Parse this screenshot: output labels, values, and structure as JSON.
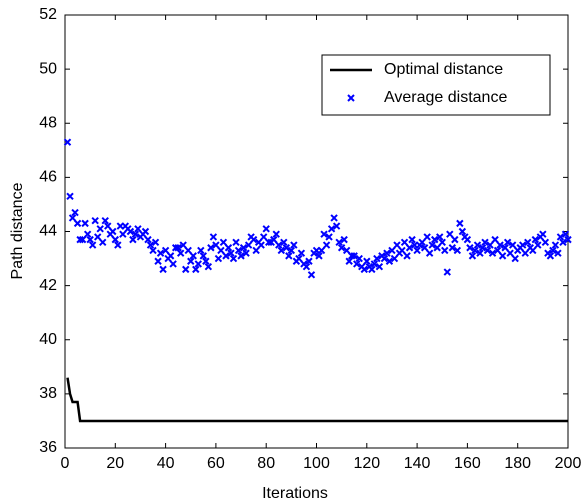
{
  "chart_data": {
    "type": "line",
    "xlabel": "Iterations",
    "ylabel": "Path distance",
    "xlim": [
      0,
      200
    ],
    "xticks": [
      0,
      20,
      40,
      60,
      80,
      100,
      120,
      140,
      160,
      180,
      200
    ],
    "ylim": [
      36,
      52
    ],
    "yticks": [
      36,
      38,
      40,
      42,
      44,
      46,
      48,
      50,
      52
    ],
    "grid": false,
    "legend": "upper right",
    "series": [
      {
        "name": "Optimal distance",
        "color": "#000000",
        "style": "line",
        "x": [
          1,
          2,
          3,
          5,
          6,
          200
        ],
        "values": [
          38.6,
          38.0,
          37.7,
          37.7,
          37.0,
          37.0
        ]
      },
      {
        "name": "Average distance",
        "color": "#0000ff",
        "style": "marker",
        "x": [
          1,
          2,
          3,
          4,
          5,
          6,
          7,
          8,
          9,
          10,
          11,
          12,
          13,
          14,
          15,
          16,
          17,
          18,
          19,
          20,
          21,
          22,
          23,
          24,
          25,
          26,
          27,
          28,
          29,
          30,
          31,
          32,
          33,
          34,
          35,
          36,
          37,
          38,
          39,
          40,
          41,
          42,
          43,
          44,
          45,
          46,
          47,
          48,
          49,
          50,
          51,
          52,
          53,
          54,
          55,
          56,
          57,
          58,
          59,
          60,
          61,
          62,
          63,
          64,
          65,
          66,
          67,
          68,
          69,
          70,
          71,
          72,
          73,
          74,
          75,
          76,
          77,
          78,
          79,
          80,
          81,
          82,
          83,
          84,
          85,
          86,
          87,
          88,
          89,
          90,
          91,
          92,
          93,
          94,
          95,
          96,
          97,
          98,
          99,
          100,
          101,
          102,
          103,
          104,
          105,
          106,
          107,
          108,
          109,
          110,
          111,
          112,
          113,
          114,
          115,
          116,
          117,
          118,
          119,
          120,
          121,
          122,
          123,
          124,
          125,
          126,
          127,
          128,
          129,
          130,
          131,
          132,
          133,
          134,
          135,
          136,
          137,
          138,
          139,
          140,
          141,
          142,
          143,
          144,
          145,
          146,
          147,
          148,
          149,
          150,
          151,
          152,
          153,
          154,
          155,
          156,
          157,
          158,
          159,
          160,
          161,
          162,
          163,
          164,
          165,
          166,
          167,
          168,
          169,
          170,
          171,
          172,
          173,
          174,
          175,
          176,
          177,
          178,
          179,
          180,
          181,
          182,
          183,
          184,
          185,
          186,
          187,
          188,
          189,
          190,
          191,
          192,
          193,
          194,
          195,
          196,
          197,
          198,
          199,
          200
        ],
        "values": [
          47.3,
          45.3,
          44.5,
          44.7,
          44.3,
          43.7,
          43.7,
          44.3,
          43.9,
          43.7,
          43.5,
          44.4,
          43.8,
          44.1,
          43.6,
          44.4,
          44.2,
          43.9,
          44.0,
          43.7,
          43.5,
          44.2,
          43.9,
          44.2,
          44.1,
          44.0,
          43.7,
          43.9,
          44.1,
          43.8,
          43.9,
          44.0,
          43.7,
          43.5,
          43.3,
          43.6,
          42.9,
          43.2,
          42.6,
          43.3,
          43.0,
          43.1,
          42.8,
          43.4,
          43.4,
          43.2,
          43.5,
          42.6,
          43.3,
          42.9,
          43.1,
          42.6,
          42.8,
          43.3,
          43.1,
          42.9,
          42.7,
          43.4,
          43.8,
          43.5,
          43.0,
          43.3,
          43.6,
          43.1,
          43.4,
          43.2,
          43.0,
          43.6,
          43.3,
          43.1,
          43.4,
          43.2,
          43.5,
          43.8,
          43.7,
          43.3,
          43.6,
          43.5,
          43.8,
          44.1,
          43.6,
          43.6,
          43.7,
          43.9,
          43.5,
          43.3,
          43.6,
          43.4,
          43.1,
          43.3,
          43.5,
          42.9,
          43.0,
          43.2,
          42.8,
          42.7,
          42.9,
          42.4,
          43.2,
          43.3,
          43.1,
          43.3,
          43.9,
          43.5,
          43.8,
          44.1,
          44.5,
          44.2,
          43.6,
          43.4,
          43.7,
          43.3,
          42.9,
          43.1,
          43.1,
          42.8,
          43.0,
          42.7,
          42.6,
          42.9,
          42.7,
          42.6,
          42.8,
          43.0,
          42.7,
          43.1,
          43.0,
          43.2,
          42.9,
          43.3,
          43.0,
          43.5,
          43.2,
          43.3,
          43.6,
          43.1,
          43.4,
          43.7,
          43.5,
          43.3,
          43.5,
          43.6,
          43.4,
          43.8,
          43.2,
          43.5,
          43.7,
          43.4,
          43.8,
          43.6,
          43.3,
          42.5,
          43.9,
          43.4,
          43.7,
          43.3,
          44.3,
          44.0,
          43.8,
          43.7,
          43.4,
          43.1,
          43.3,
          43.5,
          43.2,
          43.4,
          43.6,
          43.3,
          43.5,
          43.2,
          43.7,
          43.3,
          43.5,
          43.1,
          43.4,
          43.6,
          43.2,
          43.5,
          43.0,
          43.3,
          43.4,
          43.5,
          43.2,
          43.6,
          43.4,
          43.3,
          43.7,
          43.5,
          43.8,
          43.9,
          43.6,
          43.2,
          43.1,
          43.3,
          43.5,
          43.2,
          43.8,
          43.6,
          43.9,
          43.7
        ]
      }
    ]
  }
}
